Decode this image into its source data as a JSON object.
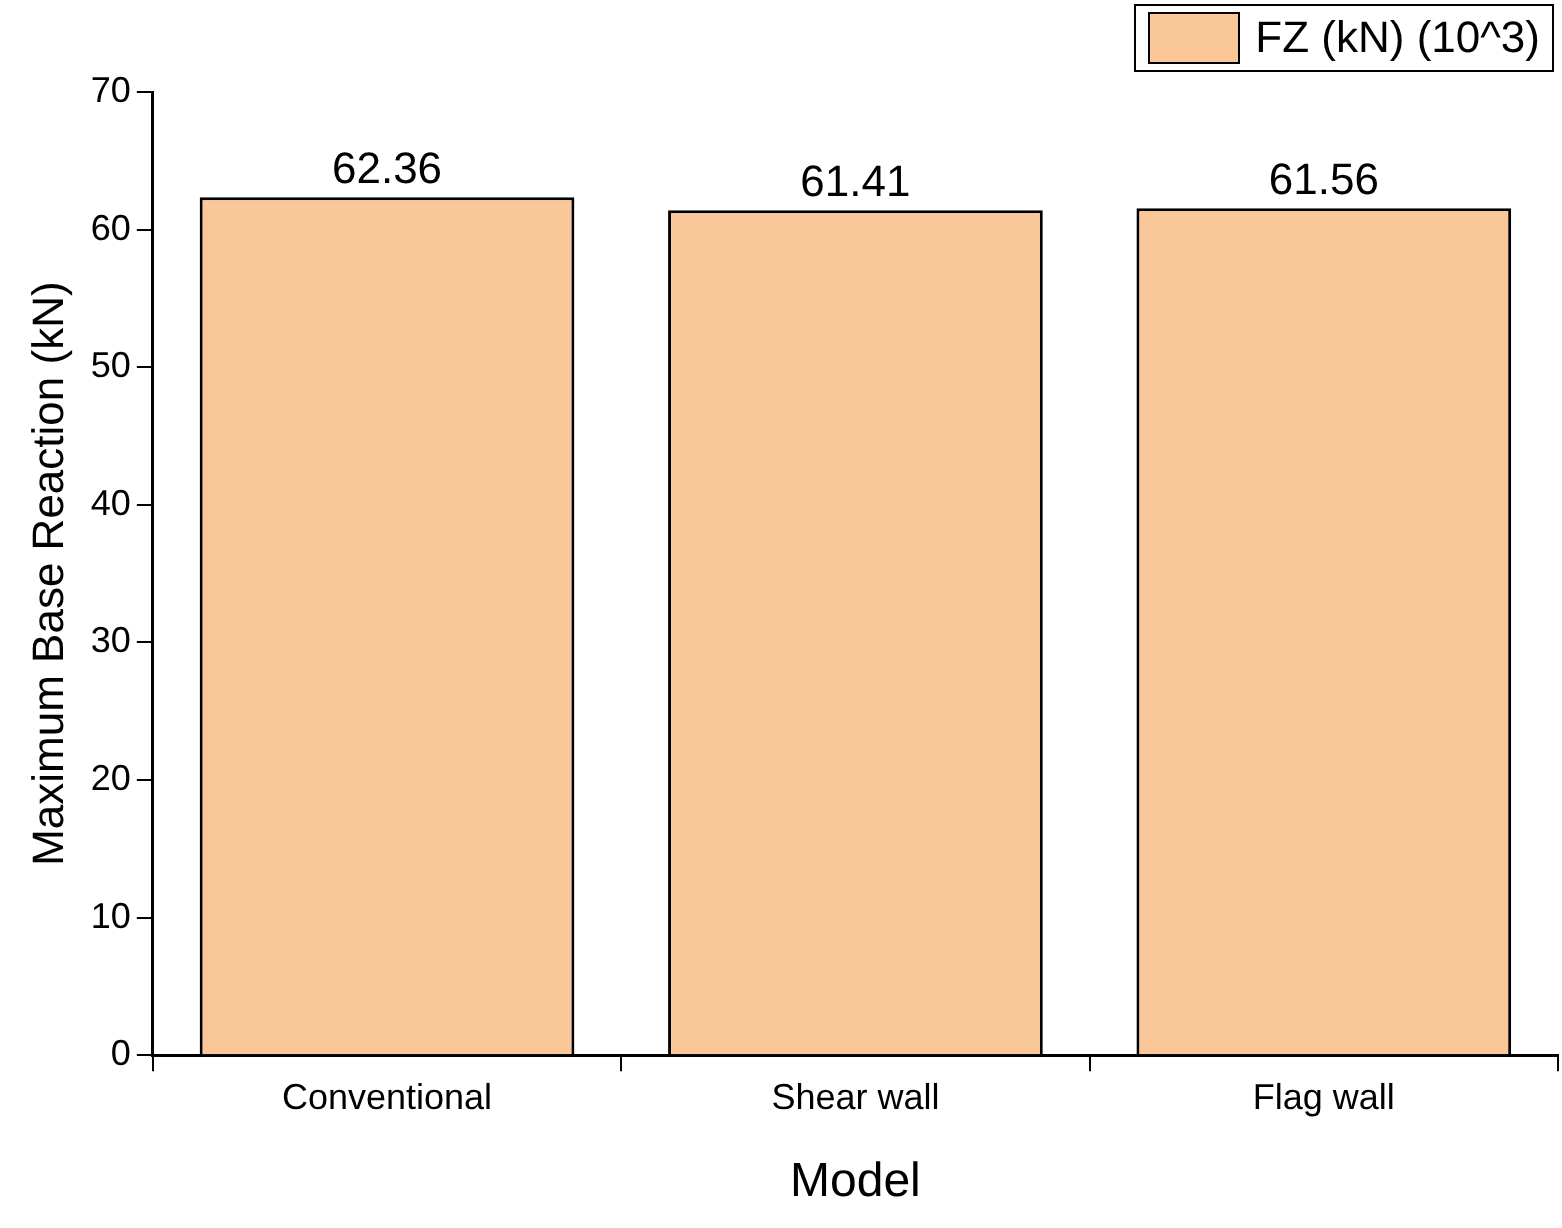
{
  "chart_data": {
    "type": "bar",
    "xlabel": "Model",
    "ylabel": "Maximum Base Reaction (kN)",
    "categories": [
      "Conventional",
      "Shear wall",
      "Flag wall"
    ],
    "series": [
      {
        "name": "FZ (kN) (10^3)",
        "color": "#fac898",
        "values": [
          62.36,
          61.41,
          61.56
        ]
      }
    ],
    "ylim": [
      0,
      70
    ],
    "yticks": [
      0,
      10,
      20,
      30,
      40,
      50,
      60,
      70
    ],
    "grid": false,
    "legend": "top right",
    "data_labels": true
  }
}
